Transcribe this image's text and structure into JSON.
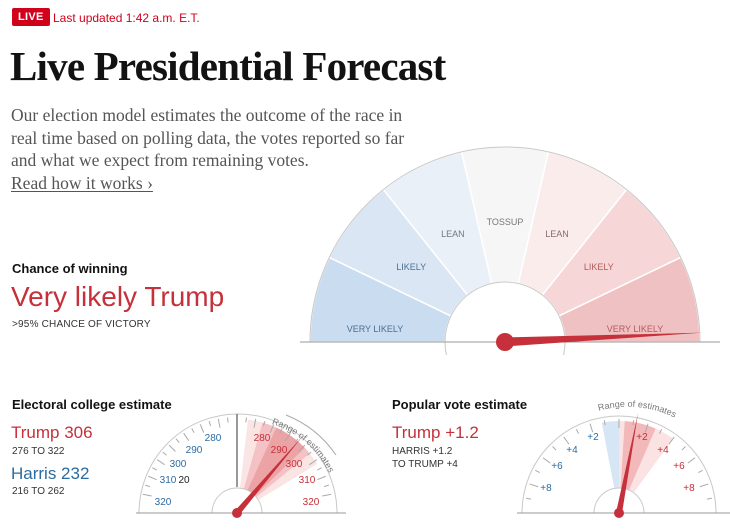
{
  "header": {
    "live_label": "LIVE",
    "updated": "Last updated 1:42 a.m. E.T."
  },
  "title": "Live Presidential Forecast",
  "intro": {
    "text": "Our election model estimates the outcome of the race in real time based on polling data, the votes reported so far and what we expect from remaining votes.",
    "link": "Read how it works ›"
  },
  "chance": {
    "label": "Chance of winning",
    "value": "Very likely Trump",
    "sub": ">95% CHANCE OF VICTORY",
    "gauge": {
      "segments": [
        "VERY LIKELY",
        "LIKELY",
        "LEAN",
        "TOSSUP",
        "LEAN",
        "LIKELY",
        "VERY LIKELY"
      ],
      "segment_colors": [
        "#c9dcf0",
        "#dae6f4",
        "#e9f0f8",
        "#f6f6f6",
        "#fbecec",
        "#f6d6d7",
        "#f0c1c3"
      ],
      "needle_fraction": 0.985
    }
  },
  "electoral": {
    "title": "Electoral college estimate",
    "trump": "Trump 306",
    "trump_range": "276 TO 322",
    "harris": "Harris 232",
    "harris_range": "216 TO 262",
    "range_label": "Range of estimates",
    "center_label": "270",
    "harris_ticks": [
      "280",
      "290",
      "300",
      "310",
      "320"
    ],
    "trump_ticks": [
      "280",
      "290",
      "300",
      "310",
      "320"
    ],
    "left_inner_tick": "20",
    "needle_value": 306
  },
  "popular": {
    "title": "Popular vote estimate",
    "trump": "Trump +1.2",
    "harris_line": "HARRIS +1.2",
    "trump_line": "TO TRUMP +4",
    "range_label": "Range of estimates",
    "harris_ticks": [
      "+2",
      "+4",
      "+6",
      "+8"
    ],
    "trump_ticks": [
      "+2",
      "+4",
      "+6",
      "+8"
    ],
    "needle_value": 1.2
  },
  "colors": {
    "red": "#c5303a",
    "blue": "#2b6ca3",
    "live": "#d0021b"
  }
}
